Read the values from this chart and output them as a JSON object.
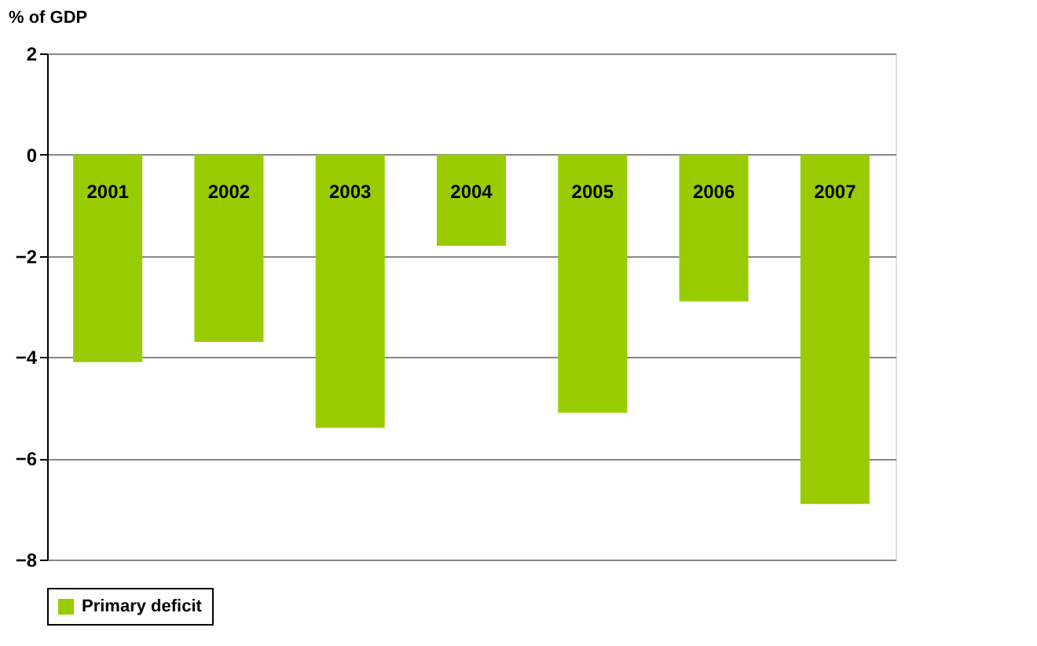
{
  "chart_data": {
    "type": "bar",
    "ylabel": "% of GDP",
    "categories": [
      "2001",
      "2002",
      "2003",
      "2004",
      "2005",
      "2006",
      "2007"
    ],
    "series": [
      {
        "name": "Primary deficit",
        "color": "#99cc00",
        "values": [
          -4.1,
          -3.7,
          -5.4,
          -1.8,
          -5.1,
          -2.9,
          -6.9
        ]
      }
    ],
    "ylim": [
      -8,
      2
    ],
    "yticks": [
      -8,
      -6,
      -4,
      -2,
      0,
      2
    ],
    "grid": "y",
    "legend": "bottom"
  }
}
